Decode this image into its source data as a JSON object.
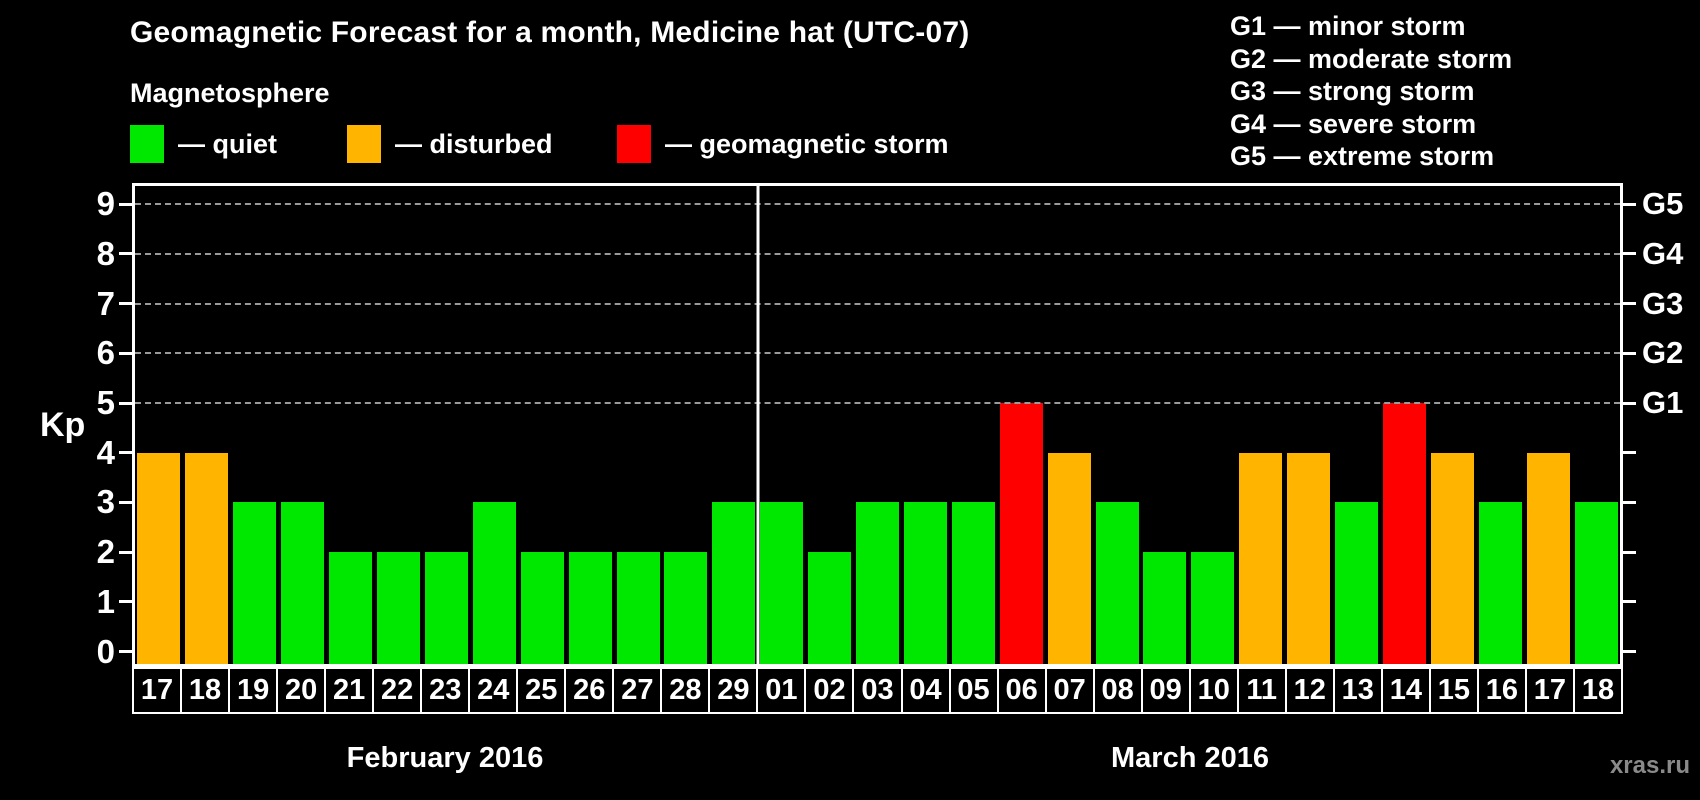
{
  "title": "Geomagnetic Forecast for a month, Medicine hat (UTC-07)",
  "subtitle": "Magnetosphere",
  "watermark": "xras.ru",
  "legend": {
    "items": [
      {
        "name": "quiet",
        "label": "— quiet",
        "color": "#00e800"
      },
      {
        "name": "disturbed",
        "label": "— disturbed",
        "color": "#ffb400"
      },
      {
        "name": "storm",
        "label": "— geomagnetic storm",
        "color": "#ff0000"
      }
    ]
  },
  "storm_scale_legend": [
    "G1 — minor storm",
    "G2 — moderate storm",
    "G3 — strong storm",
    "G4 — severe storm",
    "G5 — extreme storm"
  ],
  "chart_data": {
    "type": "bar",
    "title": "Geomagnetic Forecast for a month, Medicine hat (UTC-07)",
    "xlabel": "",
    "ylabel": "Kp",
    "ylim": [
      0,
      9.4
    ],
    "yticks": [
      0,
      1,
      2,
      3,
      4,
      5,
      6,
      7,
      8,
      9
    ],
    "gridline_levels": [
      5,
      6,
      7,
      8,
      9
    ],
    "grid": "dashed-horizontal-upper-levels-only",
    "legend_position": "top",
    "right_axis_labels": [
      {
        "level": 5,
        "label": "G1"
      },
      {
        "level": 6,
        "label": "G2"
      },
      {
        "level": 7,
        "label": "G3"
      },
      {
        "level": 8,
        "label": "G4"
      },
      {
        "level": 9,
        "label": "G5"
      }
    ],
    "status_colors": {
      "quiet": "#00e800",
      "disturbed": "#ffb400",
      "storm": "#ff0000"
    },
    "groups": [
      {
        "label": "February 2016",
        "categories": [
          "17",
          "18",
          "19",
          "20",
          "21",
          "22",
          "23",
          "24",
          "25",
          "26",
          "27",
          "28",
          "29"
        ],
        "values": [
          4,
          4,
          3,
          3,
          2,
          2,
          2,
          3,
          2,
          2,
          2,
          2,
          3
        ],
        "statuses": [
          "disturbed",
          "disturbed",
          "quiet",
          "quiet",
          "quiet",
          "quiet",
          "quiet",
          "quiet",
          "quiet",
          "quiet",
          "quiet",
          "quiet",
          "quiet"
        ]
      },
      {
        "label": "March 2016",
        "categories": [
          "01",
          "02",
          "03",
          "04",
          "05",
          "06",
          "07",
          "08",
          "09",
          "10",
          "11",
          "12",
          "13",
          "14",
          "15",
          "16",
          "17",
          "18"
        ],
        "values": [
          3,
          2,
          3,
          3,
          3,
          5,
          4,
          3,
          2,
          2,
          4,
          4,
          3,
          5,
          4,
          3,
          4,
          3
        ],
        "statuses": [
          "quiet",
          "quiet",
          "quiet",
          "quiet",
          "quiet",
          "storm",
          "disturbed",
          "quiet",
          "quiet",
          "quiet",
          "disturbed",
          "disturbed",
          "quiet",
          "storm",
          "disturbed",
          "quiet",
          "disturbed",
          "quiet"
        ]
      }
    ]
  }
}
